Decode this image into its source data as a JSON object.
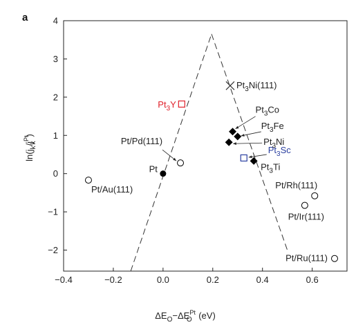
{
  "chart_data": {
    "type": "scatter",
    "panel_label": "a",
    "title": "",
    "xlabel": "ΔE_O−ΔE_O^Pt (eV)",
    "xlabel_parts": {
      "delta": "ΔE",
      "sub1": "O",
      "minus": "−ΔE",
      "sub2": "O",
      "sup2": "Pt",
      "unit": " (eV)"
    },
    "ylabel": "ln(j_k/j_k^Pt)",
    "ylabel_parts": {
      "pre": "ln(j",
      "sub1": "k",
      "mid": "/j",
      "sub2": "k",
      "sup2": "Pt",
      "post": ")"
    },
    "xlim": [
      -0.4,
      0.74
    ],
    "ylim": [
      -2.55,
      4.0
    ],
    "xticks": [
      -0.4,
      -0.2,
      0.0,
      0.2,
      0.4,
      0.6
    ],
    "xtick_labels": [
      "−0.4",
      "−0.2",
      "0.0",
      "0.2",
      "0.4",
      "0.6"
    ],
    "yticks": [
      -2,
      -1,
      0,
      1,
      2,
      3,
      4
    ],
    "ytick_labels": [
      "−2",
      "−1",
      "0",
      "1",
      "2",
      "3",
      "4"
    ],
    "grid": false,
    "volcano_lines": [
      {
        "x": [
          -0.13,
          0.195
        ],
        "y": [
          -2.55,
          3.65
        ]
      },
      {
        "x": [
          0.195,
          0.5
        ],
        "y": [
          3.65,
          -2.0
        ]
      }
    ],
    "points": [
      {
        "name": "Pt",
        "label": {
          "base": "Pt"
        },
        "x": 0.0,
        "y": 0.0,
        "marker": "filled-circle",
        "color": "#000000"
      },
      {
        "name": "Pt/Pd(111)",
        "label": {
          "base": "Pt/Pd(111)"
        },
        "x": 0.07,
        "y": 0.28,
        "marker": "open-circle",
        "color": "#000000"
      },
      {
        "name": "Pt/Au(111)",
        "label": {
          "base": "Pt/Au(111)"
        },
        "x": -0.3,
        "y": -0.17,
        "marker": "open-circle",
        "color": "#000000"
      },
      {
        "name": "Pt3Y",
        "label": {
          "base": "Pt",
          "sub": "3",
          "rest": "Y"
        },
        "x": 0.075,
        "y": 1.82,
        "marker": "open-square",
        "color": "#e0202a"
      },
      {
        "name": "Pt3Ni(111)",
        "label": {
          "base": "Pt",
          "sub": "3",
          "rest": "Ni(111)"
        },
        "x": 0.27,
        "y": 2.3,
        "marker": "cross",
        "color": "#333333"
      },
      {
        "name": "Pt3Co",
        "label": {
          "base": "Pt",
          "sub": "3",
          "rest": "Co"
        },
        "x": 0.28,
        "y": 1.1,
        "marker": "filled-diamond",
        "color": "#000000"
      },
      {
        "name": "Pt3Fe",
        "label": {
          "base": "Pt",
          "sub": "3",
          "rest": "Fe"
        },
        "x": 0.3,
        "y": 0.97,
        "marker": "filled-diamond",
        "color": "#000000"
      },
      {
        "name": "Pt3Ni",
        "label": {
          "base": "Pt",
          "sub": "3",
          "rest": "Ni"
        },
        "x": 0.265,
        "y": 0.82,
        "marker": "filled-diamond",
        "color": "#000000"
      },
      {
        "name": "Pt3Sc",
        "label": {
          "base": "Pt",
          "sub": "3",
          "rest": "Sc"
        },
        "x": 0.325,
        "y": 0.41,
        "marker": "open-square",
        "color": "#2a3fa0"
      },
      {
        "name": "Pt3Ti",
        "label": {
          "base": "Pt",
          "sub": "3",
          "rest": "Ti"
        },
        "x": 0.365,
        "y": 0.33,
        "marker": "filled-diamond",
        "color": "#000000"
      },
      {
        "name": "Pt/Rh(111)",
        "label": {
          "base": "Pt/Rh(111)"
        },
        "x": 0.61,
        "y": -0.58,
        "marker": "open-circle",
        "color": "#000000"
      },
      {
        "name": "Pt/Ir(111)",
        "label": {
          "base": "Pt/Ir(111)"
        },
        "x": 0.57,
        "y": -0.83,
        "marker": "open-circle",
        "color": "#000000"
      },
      {
        "name": "Pt/Ru(111)",
        "label": {
          "base": "Pt/Ru(111)"
        },
        "x": 0.69,
        "y": -2.22,
        "marker": "open-circle",
        "color": "#000000"
      }
    ]
  }
}
